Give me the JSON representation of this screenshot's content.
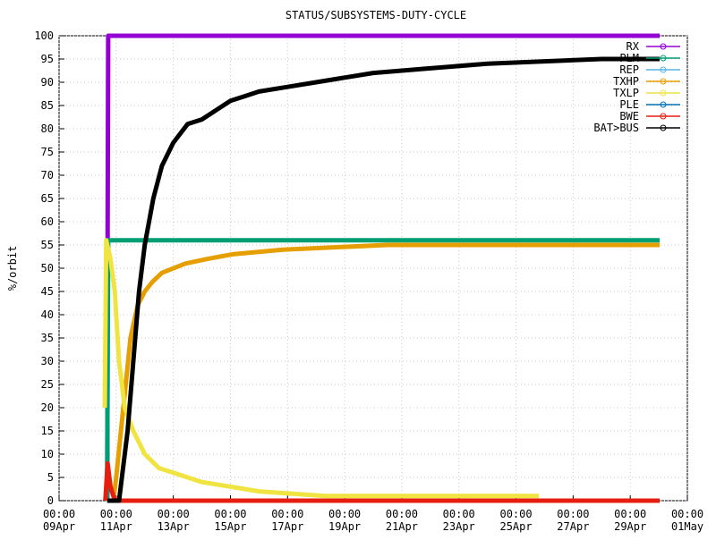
{
  "chart_data": {
    "type": "line",
    "title": "STATUS/SUBSYSTEMS-DUTY-CYCLE",
    "y_label": "%/orbit",
    "xlim": [
      0,
      22
    ],
    "xticks": [
      {
        "value": 0,
        "label": [
          "00:00",
          "09Apr"
        ]
      },
      {
        "value": 2,
        "label": [
          "00:00",
          "11Apr"
        ]
      },
      {
        "value": 4,
        "label": [
          "00:00",
          "13Apr"
        ]
      },
      {
        "value": 6,
        "label": [
          "00:00",
          "15Apr"
        ]
      },
      {
        "value": 8,
        "label": [
          "00:00",
          "17Apr"
        ]
      },
      {
        "value": 10,
        "label": [
          "00:00",
          "19Apr"
        ]
      },
      {
        "value": 12,
        "label": [
          "00:00",
          "21Apr"
        ]
      },
      {
        "value": 14,
        "label": [
          "00:00",
          "23Apr"
        ]
      },
      {
        "value": 16,
        "label": [
          "00:00",
          "25Apr"
        ]
      },
      {
        "value": 18,
        "label": [
          "00:00",
          "27Apr"
        ]
      },
      {
        "value": 20,
        "label": [
          "00:00",
          "29Apr"
        ]
      },
      {
        "value": 22,
        "label": [
          "00:00",
          "01May"
        ]
      }
    ],
    "ylim": [
      0,
      100
    ],
    "yticks": [
      0,
      5,
      10,
      15,
      20,
      25,
      30,
      35,
      40,
      45,
      50,
      55,
      60,
      65,
      70,
      75,
      80,
      85,
      90,
      95,
      100
    ],
    "legend": "top-right",
    "series": [
      {
        "name": "RX",
        "color": "#9400d3",
        "x": [
          1.69,
          1.7,
          1.72,
          21.03
        ],
        "values": [
          0,
          58,
          100,
          100
        ]
      },
      {
        "name": "PLM",
        "color": "#009e73",
        "x": [
          1.68,
          1.72,
          21.03
        ],
        "values": [
          0,
          56,
          56
        ]
      },
      {
        "name": "REP",
        "color": "#56b4e9",
        "x": [
          1.68,
          21.03
        ],
        "values": [
          0,
          0
        ]
      },
      {
        "name": "TXHP",
        "color": "#e69f00",
        "x": [
          1.9,
          2.0,
          2.25,
          2.5,
          2.75,
          3.0,
          3.26,
          3.6,
          4.42,
          5.2,
          6.08,
          7.84,
          11.5,
          21.03
        ],
        "values": [
          0,
          5,
          20,
          35,
          42,
          45,
          47,
          49,
          51,
          52,
          53,
          54,
          55,
          55
        ]
      },
      {
        "name": "TXLP",
        "color": "#f0e442",
        "x": [
          1.6,
          1.65,
          1.8,
          1.95,
          2.1,
          2.3,
          2.6,
          3.0,
          3.5,
          4.0,
          4.5,
          5.0,
          6.0,
          7.0,
          9.3,
          16.8
        ],
        "values": [
          20,
          56,
          52,
          45,
          30,
          20,
          15,
          10,
          7,
          6,
          5,
          4,
          3,
          2,
          1,
          1
        ]
      },
      {
        "name": "PLE",
        "color": "#0072b2",
        "x": [
          1.68,
          21.03
        ],
        "values": [
          0,
          0
        ]
      },
      {
        "name": "BWE",
        "color": "#e51e10",
        "x": [
          1.62,
          1.7,
          1.8,
          1.9,
          2.0,
          21.03
        ],
        "values": [
          0,
          8,
          3,
          1,
          0,
          0
        ]
      },
      {
        "name": "BAT>BUS",
        "color": "#000000",
        "x": [
          1.7,
          2.1,
          2.4,
          2.6,
          2.8,
          3.0,
          3.3,
          3.6,
          4.0,
          4.5,
          5.0,
          5.5,
          6.0,
          6.5,
          7.0,
          8.0,
          9.0,
          10.0,
          11.0,
          13.0,
          15.0,
          19.0,
          21.03
        ],
        "values": [
          0,
          0,
          15,
          30,
          45,
          55,
          65,
          72,
          77,
          81,
          82,
          84,
          86,
          87,
          88,
          89,
          90,
          91,
          92,
          93,
          94,
          95,
          95
        ]
      }
    ]
  }
}
